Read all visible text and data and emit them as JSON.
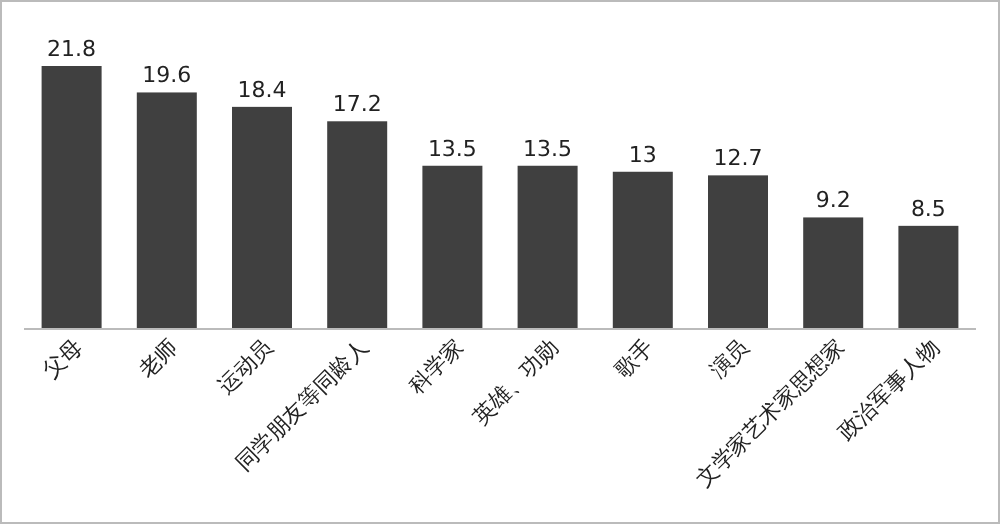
{
  "chart_data": {
    "type": "bar",
    "categories": [
      "父母",
      "老师",
      "运动员",
      "同学朋友等同龄人",
      "科学家",
      "英雄、功勋",
      "歌手",
      "演员",
      "文学家艺术家思想家",
      "政治军事人物"
    ],
    "values": [
      21.8,
      19.6,
      18.4,
      17.2,
      13.5,
      13.5,
      13,
      12.7,
      9.2,
      8.5
    ],
    "color": "#404040",
    "data_labels": true
  }
}
